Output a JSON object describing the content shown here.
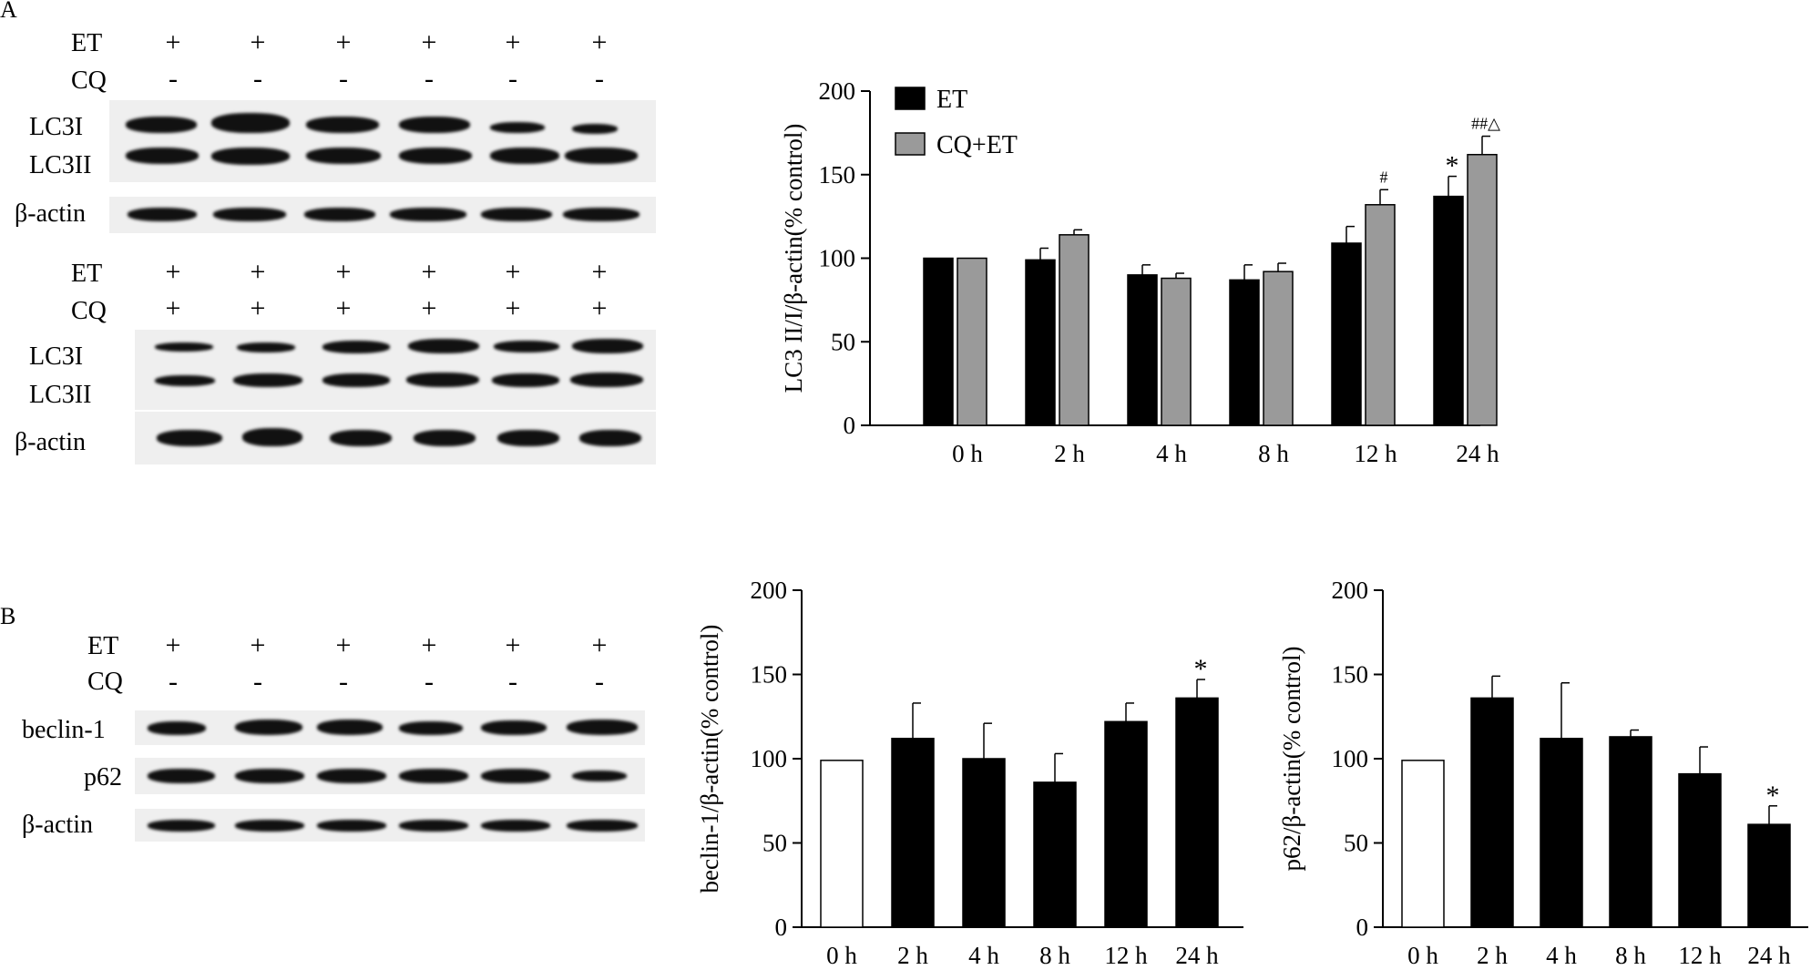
{
  "panels": {
    "A": {
      "letter": "A",
      "blot_top": {
        "rows": [
          {
            "label": "ET",
            "signs": [
              "+",
              "+",
              "+",
              "+",
              "+",
              "+"
            ]
          },
          {
            "label": "CQ",
            "signs": [
              "-",
              "-",
              "-",
              "-",
              "-",
              "-"
            ]
          }
        ],
        "bands": [
          "LC3I",
          "LC3II"
        ],
        "loading": "β-actin"
      },
      "blot_bottom": {
        "rows": [
          {
            "label": "ET",
            "signs": [
              "+",
              "+",
              "+",
              "+",
              "+",
              "+"
            ]
          },
          {
            "label": "CQ",
            "signs": [
              "+",
              "+",
              "+",
              "+",
              "+",
              "+"
            ]
          }
        ],
        "bands": [
          "LC3I",
          "LC3II"
        ],
        "loading": "β-actin"
      }
    },
    "B": {
      "letter": "B",
      "blot": {
        "rows": [
          {
            "label": "ET",
            "signs": [
              "+",
              "+",
              "+",
              "+",
              "+",
              "+"
            ]
          },
          {
            "label": "CQ",
            "signs": [
              "-",
              "-",
              "-",
              "-",
              "-",
              "-"
            ]
          }
        ],
        "bands": [
          "beclin-1",
          "p62",
          "β-actin"
        ]
      }
    }
  },
  "colors": {
    "et": "#000000",
    "cq_et": "#9a9a9a",
    "control": "#ffffff"
  },
  "chart_data": [
    {
      "type": "bar",
      "panel": "A",
      "categories": [
        "0 h",
        "2 h",
        "4 h",
        "8 h",
        "12 h",
        "24 h"
      ],
      "series": [
        {
          "name": "ET",
          "color": "#000000",
          "values": [
            100,
            99,
            90,
            87,
            109,
            137
          ],
          "errors": [
            0,
            7,
            6,
            9,
            10,
            12
          ]
        },
        {
          "name": "CQ+ET",
          "color": "#9a9a9a",
          "values": [
            100,
            114,
            88,
            92,
            132,
            162
          ],
          "errors": [
            0,
            3,
            3,
            5,
            9,
            11
          ]
        }
      ],
      "annotations": [
        {
          "category": "12 h",
          "series": "CQ+ET",
          "text": "#"
        },
        {
          "category": "24 h",
          "series": "ET",
          "text": "*"
        },
        {
          "category": "24 h",
          "series": "CQ+ET",
          "text": "##△"
        }
      ],
      "ylabel": "LC3 II/I/β-actin(% control)",
      "ylim": [
        0,
        200
      ],
      "yticks": [
        0,
        50,
        100,
        150,
        200
      ],
      "legend": "top-left"
    },
    {
      "type": "bar",
      "panel": "B",
      "categories": [
        "0 h",
        "2 h",
        "4 h",
        "8 h",
        "12 h",
        "24 h"
      ],
      "series": [
        {
          "values": [
            99,
            112,
            100,
            86,
            122,
            136
          ],
          "errors": [
            0,
            21,
            21,
            17,
            11,
            11
          ],
          "colors": [
            "#ffffff",
            "#000000",
            "#000000",
            "#000000",
            "#000000",
            "#000000"
          ]
        }
      ],
      "annotations": [
        {
          "category": "24 h",
          "text": "*"
        }
      ],
      "ylabel": "beclin-1/β-actin(% control)",
      "ylim": [
        0,
        200
      ],
      "yticks": [
        0,
        50,
        100,
        150,
        200
      ]
    },
    {
      "type": "bar",
      "panel": "B",
      "categories": [
        "0 h",
        "2 h",
        "4 h",
        "8 h",
        "12 h",
        "24 h"
      ],
      "series": [
        {
          "values": [
            99,
            136,
            112,
            113,
            91,
            61
          ],
          "errors": [
            0,
            13,
            33,
            4,
            16,
            11
          ],
          "colors": [
            "#ffffff",
            "#000000",
            "#000000",
            "#000000",
            "#000000",
            "#000000"
          ]
        }
      ],
      "annotations": [
        {
          "category": "24 h",
          "text": "*"
        }
      ],
      "ylabel": "p62/β-actin(% control)",
      "ylim": [
        0,
        200
      ],
      "yticks": [
        0,
        50,
        100,
        150,
        200
      ]
    }
  ]
}
